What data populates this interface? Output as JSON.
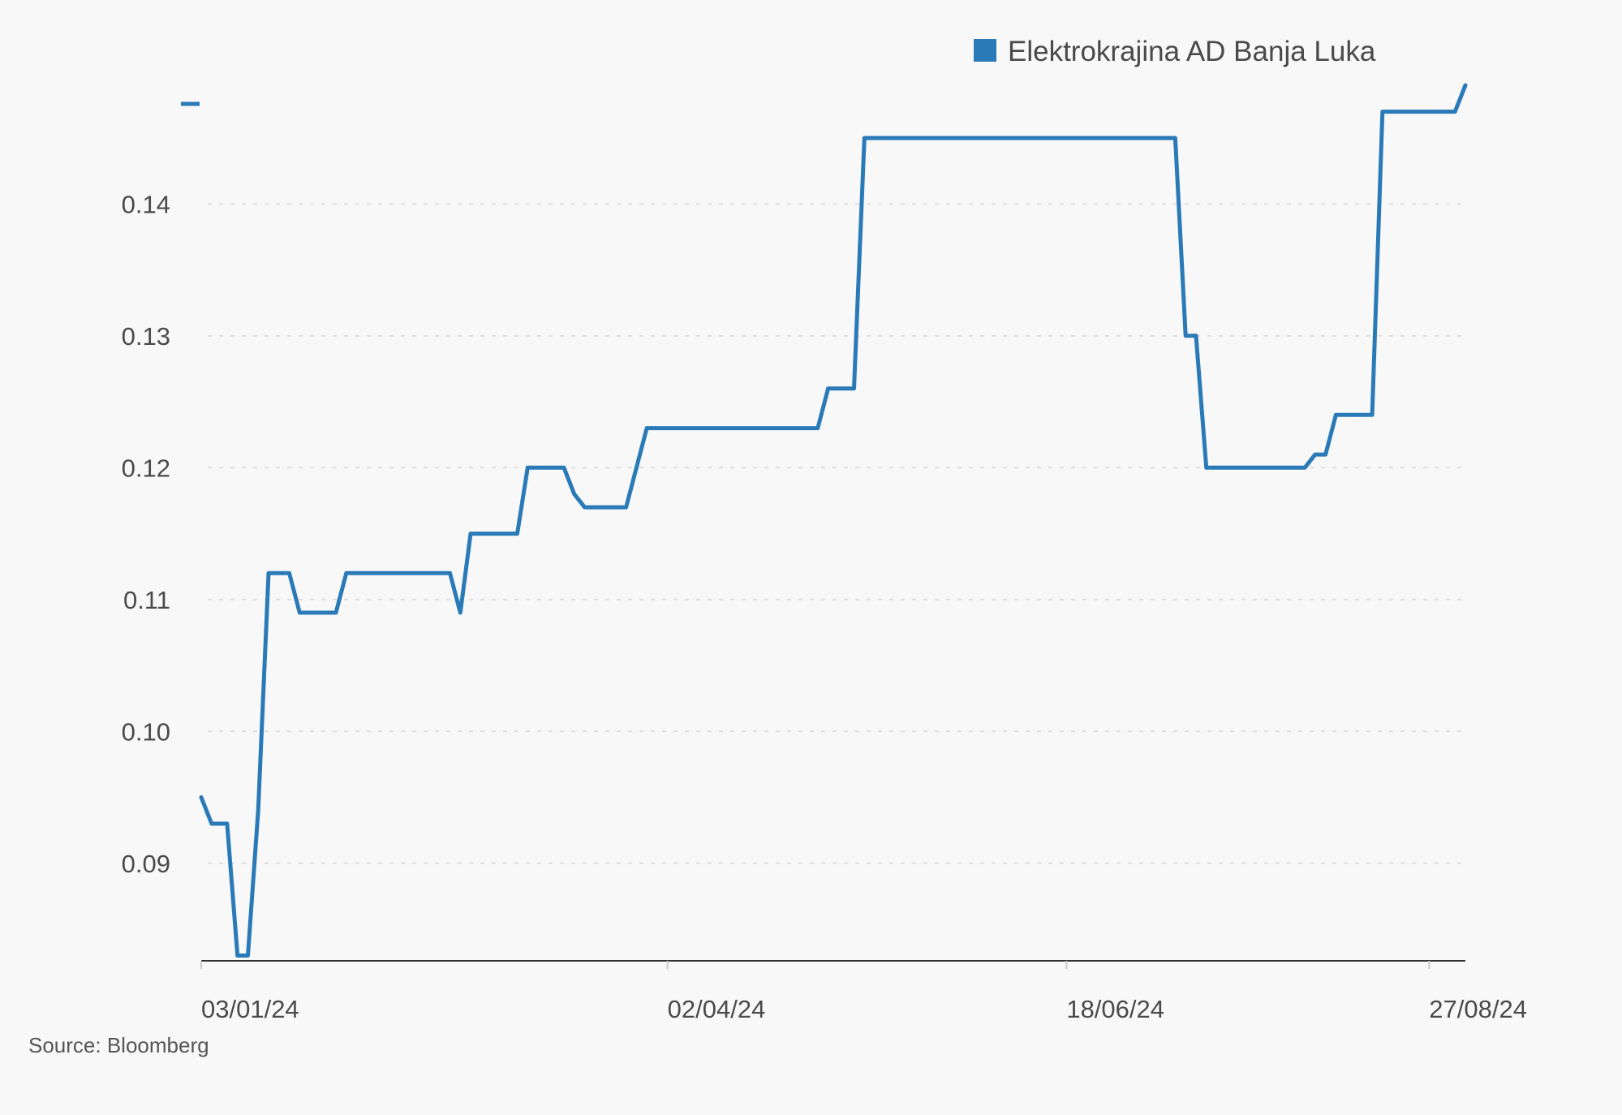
{
  "chart_data": {
    "type": "line",
    "title": "",
    "xlabel": "",
    "ylabel": "",
    "ylim": [
      0.0826,
      0.1487
    ],
    "xlim": [
      "2024-01-03",
      "2024-09-03"
    ],
    "y_ticks": [
      0.09,
      0.1,
      0.11,
      0.12,
      0.13,
      0.14
    ],
    "y_tick_labels": [
      "0.09",
      "0.10",
      "0.11",
      "0.12",
      "0.13",
      "0.14"
    ],
    "x_ticks": [
      "2024-01-03",
      "2024-04-02",
      "2024-06-18",
      "2024-08-27"
    ],
    "x_tick_labels": [
      "03/01/24",
      "02/04/24",
      "18/06/24",
      "27/08/24"
    ],
    "grid": "horizontal dashed",
    "legend_position": "top-right",
    "colors": {
      "series": "#2a7ab8",
      "grid": "#dddddd",
      "axis": "#333333"
    },
    "series": [
      {
        "name": "Elektrokrajina AD Banja Luka",
        "color": "#2a7ab8",
        "points": [
          [
            "2024-01-03",
            0.095
          ],
          [
            "2024-01-05",
            0.093
          ],
          [
            "2024-01-08",
            0.093
          ],
          [
            "2024-01-10",
            0.083
          ],
          [
            "2024-01-12",
            0.083
          ],
          [
            "2024-01-14",
            0.094
          ],
          [
            "2024-01-16",
            0.112
          ],
          [
            "2024-01-20",
            0.112
          ],
          [
            "2024-01-22",
            0.109
          ],
          [
            "2024-01-29",
            0.109
          ],
          [
            "2024-01-31",
            0.112
          ],
          [
            "2024-02-20",
            0.112
          ],
          [
            "2024-02-22",
            0.109
          ],
          [
            "2024-02-24",
            0.115
          ],
          [
            "2024-03-04",
            0.115
          ],
          [
            "2024-03-06",
            0.12
          ],
          [
            "2024-03-13",
            0.12
          ],
          [
            "2024-03-15",
            0.118
          ],
          [
            "2024-03-17",
            0.117
          ],
          [
            "2024-03-25",
            0.117
          ],
          [
            "2024-03-29",
            0.123
          ],
          [
            "2024-05-01",
            0.123
          ],
          [
            "2024-05-03",
            0.126
          ],
          [
            "2024-05-08",
            0.126
          ],
          [
            "2024-05-10",
            0.145
          ],
          [
            "2024-07-09",
            0.145
          ],
          [
            "2024-07-11",
            0.13
          ],
          [
            "2024-07-13",
            0.13
          ],
          [
            "2024-07-15",
            0.12
          ],
          [
            "2024-08-03",
            0.12
          ],
          [
            "2024-08-05",
            0.121
          ],
          [
            "2024-08-07",
            0.121
          ],
          [
            "2024-08-09",
            0.124
          ],
          [
            "2024-08-16",
            0.124
          ],
          [
            "2024-08-18",
            0.147
          ],
          [
            "2024-09-01",
            0.147
          ],
          [
            "2024-09-03",
            0.149
          ]
        ]
      }
    ]
  },
  "source": "Source: Bloomberg"
}
